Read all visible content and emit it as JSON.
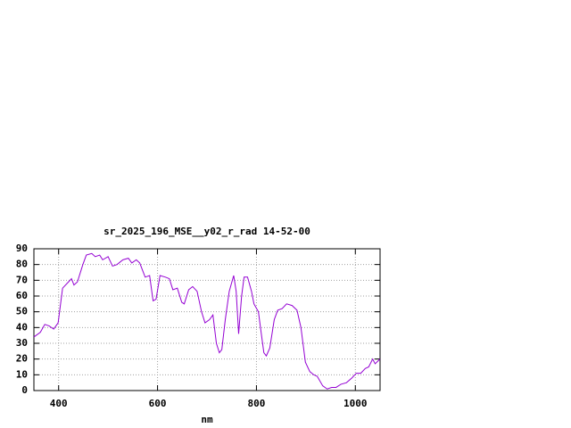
{
  "chart_data": {
    "type": "line",
    "title": "sr_2025_196_MSE__y02_r_rad 14-52-00",
    "xlabel": "nm",
    "color": "#9400d3",
    "grid": true,
    "xlim": [
      350,
      1050
    ],
    "ylim": [
      0,
      90
    ],
    "xticks": [
      400,
      600,
      800,
      1000
    ],
    "yticks": [
      0,
      10,
      20,
      30,
      40,
      50,
      60,
      70,
      80,
      90
    ],
    "x": [
      350,
      363,
      372,
      381,
      390,
      399,
      408,
      420,
      426,
      431,
      438,
      449,
      456,
      467,
      474,
      483,
      489,
      500,
      509,
      518,
      530,
      541,
      548,
      557,
      564,
      575,
      584,
      591,
      597,
      605,
      616,
      624,
      631,
      640,
      649,
      654,
      663,
      671,
      680,
      689,
      696,
      705,
      712,
      719,
      725,
      730,
      737,
      745,
      754,
      759,
      764,
      770,
      775,
      782,
      790,
      795,
      804,
      809,
      815,
      820,
      827,
      836,
      843,
      852,
      861,
      872,
      882,
      890,
      899,
      908,
      916,
      923,
      934,
      943,
      952,
      961,
      971,
      982,
      993,
      1002,
      1011,
      1020,
      1027,
      1035,
      1040,
      1050
    ],
    "values": [
      34,
      37,
      42,
      41,
      39,
      43,
      65,
      69,
      71,
      67,
      69,
      80,
      86,
      87,
      85,
      86,
      83,
      85,
      79,
      80,
      83,
      84,
      81,
      83,
      81,
      72,
      73,
      57,
      58,
      73,
      72,
      71,
      64,
      65,
      56,
      55,
      64,
      66,
      63,
      50,
      43,
      45,
      48,
      30,
      24,
      26,
      45,
      63,
      73,
      63,
      36,
      60,
      72,
      72,
      63,
      55,
      50,
      38,
      24,
      22,
      27,
      45,
      51,
      52,
      55,
      54,
      51,
      40,
      18,
      12,
      10,
      9,
      3,
      1,
      2,
      2,
      4,
      5,
      8,
      11,
      11,
      14,
      15,
      20,
      17,
      20
    ]
  }
}
